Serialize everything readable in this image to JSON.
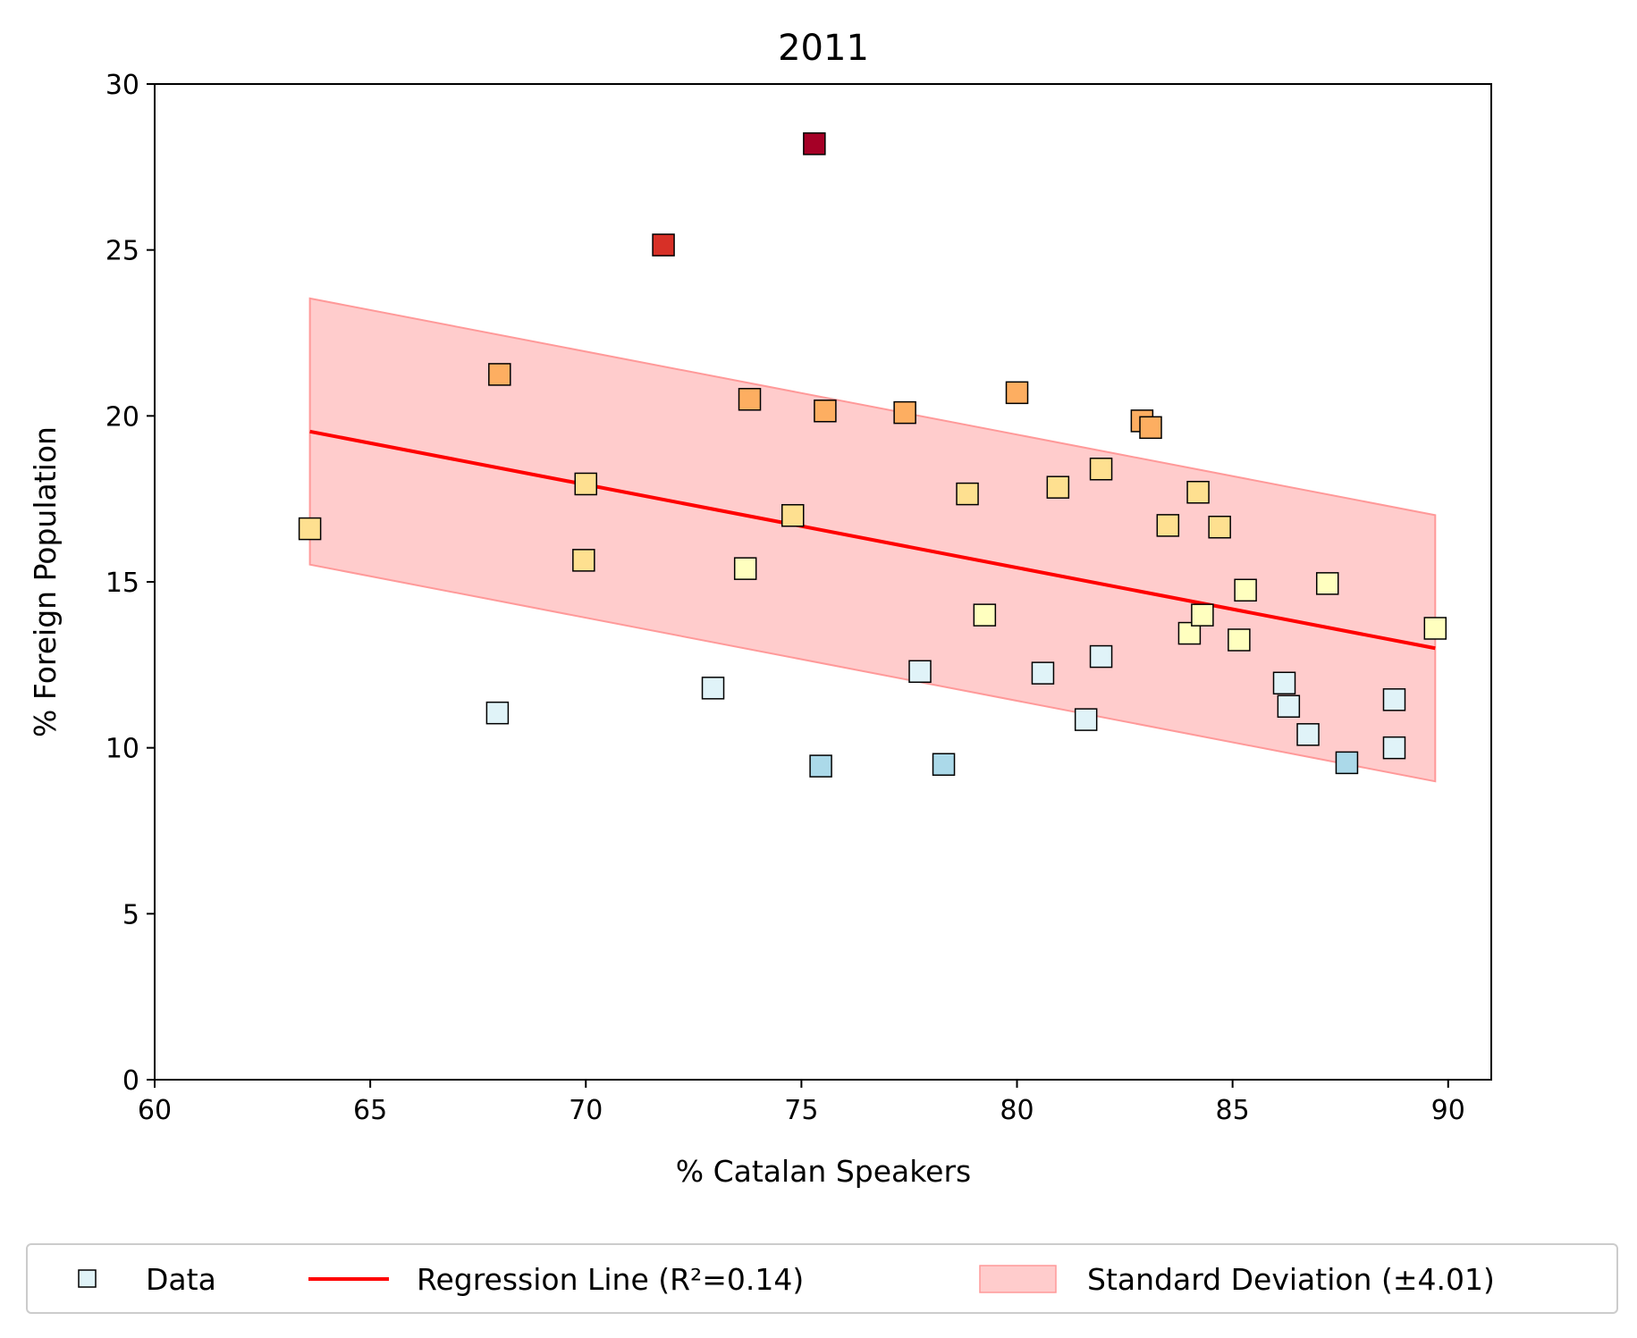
{
  "chart_data": {
    "type": "scatter",
    "title": "2011",
    "xlabel": "% Catalan Speakers",
    "ylabel": "% Foreign Population",
    "xlim": [
      60,
      91
    ],
    "ylim": [
      0,
      30
    ],
    "xticks": [
      60,
      65,
      70,
      75,
      80,
      85,
      90
    ],
    "yticks": [
      0,
      5,
      10,
      15,
      20,
      25,
      30
    ],
    "grid": false,
    "legend_position": "bottom-center",
    "legend": {
      "data_label": "Data",
      "regression_label": "Regression Line (R²=0.14)",
      "band_label": "Standard Deviation (±4.01)"
    },
    "colors": {
      "regression_line": "#ff0000",
      "band_fill": "#ffcccc",
      "band_edge": "#ff9999",
      "marker_edge": "#000000"
    },
    "color_scale": [
      "#abd9e9",
      "#e0f3f8",
      "#ffffbf",
      "#fee090",
      "#fdae61",
      "#f46d43",
      "#d73027",
      "#a50026"
    ],
    "regression": {
      "x": [
        63.6,
        89.7
      ],
      "y": [
        19.53,
        13.0
      ]
    },
    "std_band": {
      "x": [
        63.6,
        89.7
      ],
      "upper": [
        23.54,
        17.01
      ],
      "lower": [
        15.52,
        8.99
      ]
    },
    "points": [
      {
        "x": 63.6,
        "y": 16.6,
        "color": "#fee090"
      },
      {
        "x": 68.0,
        "y": 21.25,
        "color": "#fdae61"
      },
      {
        "x": 67.95,
        "y": 11.05,
        "color": "#e0f3f8"
      },
      {
        "x": 70.0,
        "y": 17.95,
        "color": "#fee090"
      },
      {
        "x": 69.95,
        "y": 15.65,
        "color": "#fee090"
      },
      {
        "x": 71.8,
        "y": 25.15,
        "color": "#d73027"
      },
      {
        "x": 72.95,
        "y": 11.8,
        "color": "#e0f3f8"
      },
      {
        "x": 73.7,
        "y": 15.4,
        "color": "#ffffbf"
      },
      {
        "x": 73.8,
        "y": 20.5,
        "color": "#fdae61"
      },
      {
        "x": 74.8,
        "y": 17.0,
        "color": "#fee090"
      },
      {
        "x": 75.3,
        "y": 28.2,
        "color": "#a50026"
      },
      {
        "x": 75.55,
        "y": 20.15,
        "color": "#fdae61"
      },
      {
        "x": 75.45,
        "y": 9.45,
        "color": "#abd9e9"
      },
      {
        "x": 77.4,
        "y": 20.1,
        "color": "#fdae61"
      },
      {
        "x": 77.75,
        "y": 12.3,
        "color": "#e0f3f8"
      },
      {
        "x": 78.3,
        "y": 9.5,
        "color": "#abd9e9"
      },
      {
        "x": 78.85,
        "y": 17.65,
        "color": "#fee090"
      },
      {
        "x": 79.25,
        "y": 14.0,
        "color": "#ffffbf"
      },
      {
        "x": 80.0,
        "y": 20.7,
        "color": "#fdae61"
      },
      {
        "x": 80.6,
        "y": 12.25,
        "color": "#e0f3f8"
      },
      {
        "x": 80.95,
        "y": 17.85,
        "color": "#fee090"
      },
      {
        "x": 81.6,
        "y": 10.85,
        "color": "#e0f3f8"
      },
      {
        "x": 81.95,
        "y": 18.4,
        "color": "#fee090"
      },
      {
        "x": 81.95,
        "y": 12.75,
        "color": "#e0f3f8"
      },
      {
        "x": 82.9,
        "y": 19.85,
        "color": "#fdae61"
      },
      {
        "x": 83.1,
        "y": 19.65,
        "color": "#fdae61"
      },
      {
        "x": 83.5,
        "y": 16.7,
        "color": "#fee090"
      },
      {
        "x": 84.0,
        "y": 13.45,
        "color": "#ffffbf"
      },
      {
        "x": 84.2,
        "y": 17.7,
        "color": "#fee090"
      },
      {
        "x": 84.3,
        "y": 14.0,
        "color": "#ffffbf"
      },
      {
        "x": 84.7,
        "y": 16.65,
        "color": "#fee090"
      },
      {
        "x": 85.15,
        "y": 13.25,
        "color": "#ffffbf"
      },
      {
        "x": 85.3,
        "y": 14.75,
        "color": "#ffffbf"
      },
      {
        "x": 86.2,
        "y": 11.95,
        "color": "#e0f3f8"
      },
      {
        "x": 86.3,
        "y": 11.25,
        "color": "#e0f3f8"
      },
      {
        "x": 86.75,
        "y": 10.4,
        "color": "#e0f3f8"
      },
      {
        "x": 87.2,
        "y": 14.95,
        "color": "#ffffbf"
      },
      {
        "x": 87.65,
        "y": 9.55,
        "color": "#abd9e9"
      },
      {
        "x": 88.75,
        "y": 11.45,
        "color": "#e0f3f8"
      },
      {
        "x": 88.75,
        "y": 10.0,
        "color": "#e0f3f8"
      },
      {
        "x": 89.7,
        "y": 13.6,
        "color": "#ffffbf"
      }
    ]
  }
}
